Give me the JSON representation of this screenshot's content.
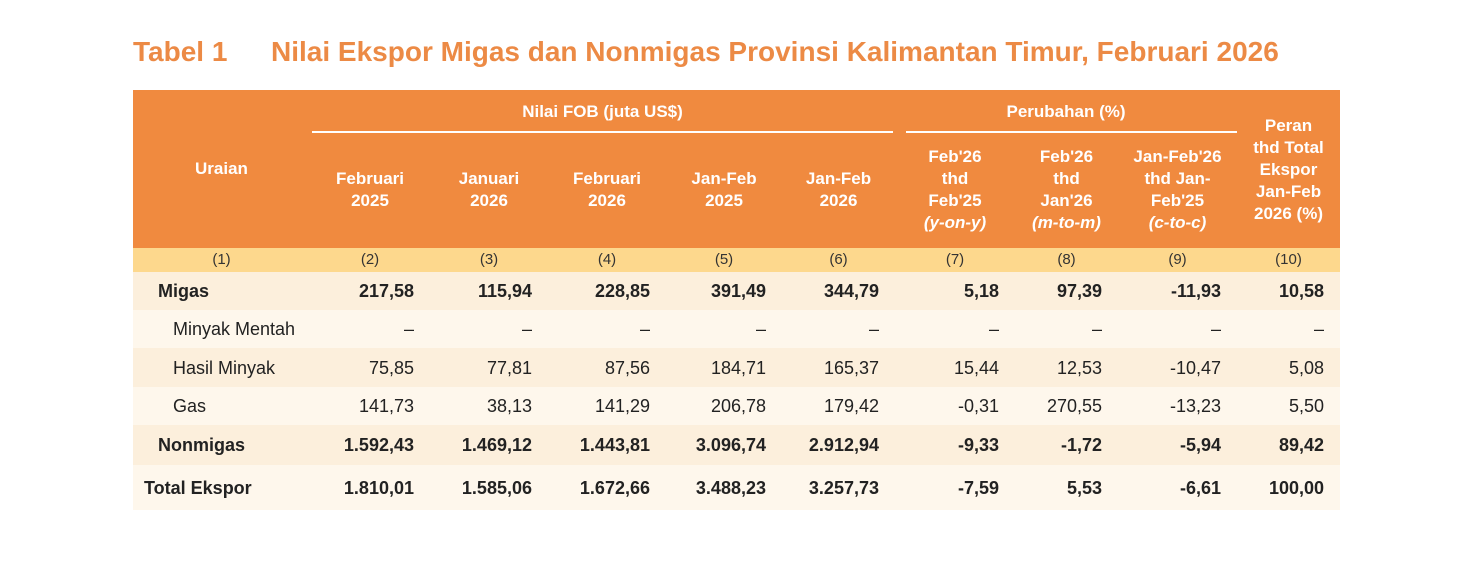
{
  "title": {
    "label": "Tabel 1",
    "text": "Nilai Ekspor Migas dan Nonmigas Provinsi Kalimantan Timur, Februari 2026"
  },
  "table": {
    "stub_header": "Uraian",
    "groups": [
      "Nilai FOB (juta US$)",
      "Perubahan (%)"
    ],
    "columns": [
      [
        "Februari",
        "2025"
      ],
      [
        "Januari",
        "2026"
      ],
      [
        "Februari",
        "2026"
      ],
      [
        "Jan-Feb",
        "2025"
      ],
      [
        "Jan-Feb",
        "2026"
      ],
      [
        "Feb'26",
        "thd",
        "Feb'25",
        "(y-on-y)"
      ],
      [
        "Feb'26",
        "thd",
        "Jan'26",
        "(m-to-m)"
      ],
      [
        "Jan-Feb'26",
        "thd Jan-",
        "Feb'25",
        "(c-to-c)"
      ],
      [
        "Peran",
        "thd Total",
        "Ekspor",
        "Jan-Feb",
        "2026 (%)"
      ]
    ],
    "numbers": [
      "(1)",
      "(2)",
      "(3)",
      "(4)",
      "(5)",
      "(6)",
      "(7)",
      "(8)",
      "(9)",
      "(10)"
    ],
    "rows": [
      [
        "Migas",
        "217,58",
        "115,94",
        "228,85",
        "391,49",
        "344,79",
        "5,18",
        "97,39",
        "-11,93",
        "10,58"
      ],
      [
        "Minyak Mentah",
        "–",
        "–",
        "–",
        "–",
        "–",
        "–",
        "–",
        "–",
        "–"
      ],
      [
        "Hasil Minyak",
        "75,85",
        "77,81",
        "87,56",
        "184,71",
        "165,37",
        "15,44",
        "12,53",
        "-10,47",
        "5,08"
      ],
      [
        "Gas",
        "141,73",
        "38,13",
        "141,29",
        "206,78",
        "179,42",
        "-0,31",
        "270,55",
        "-13,23",
        "5,50"
      ],
      [
        "Nonmigas",
        "1.592,43",
        "1.469,12",
        "1.443,81",
        "3.096,74",
        "2.912,94",
        "-9,33",
        "-1,72",
        "-5,94",
        "89,42"
      ],
      [
        "Total Ekspor",
        "1.810,01",
        "1.585,06",
        "1.672,66",
        "3.488,23",
        "3.257,73",
        "-7,59",
        "5,53",
        "-6,61",
        "100,00"
      ]
    ]
  }
}
